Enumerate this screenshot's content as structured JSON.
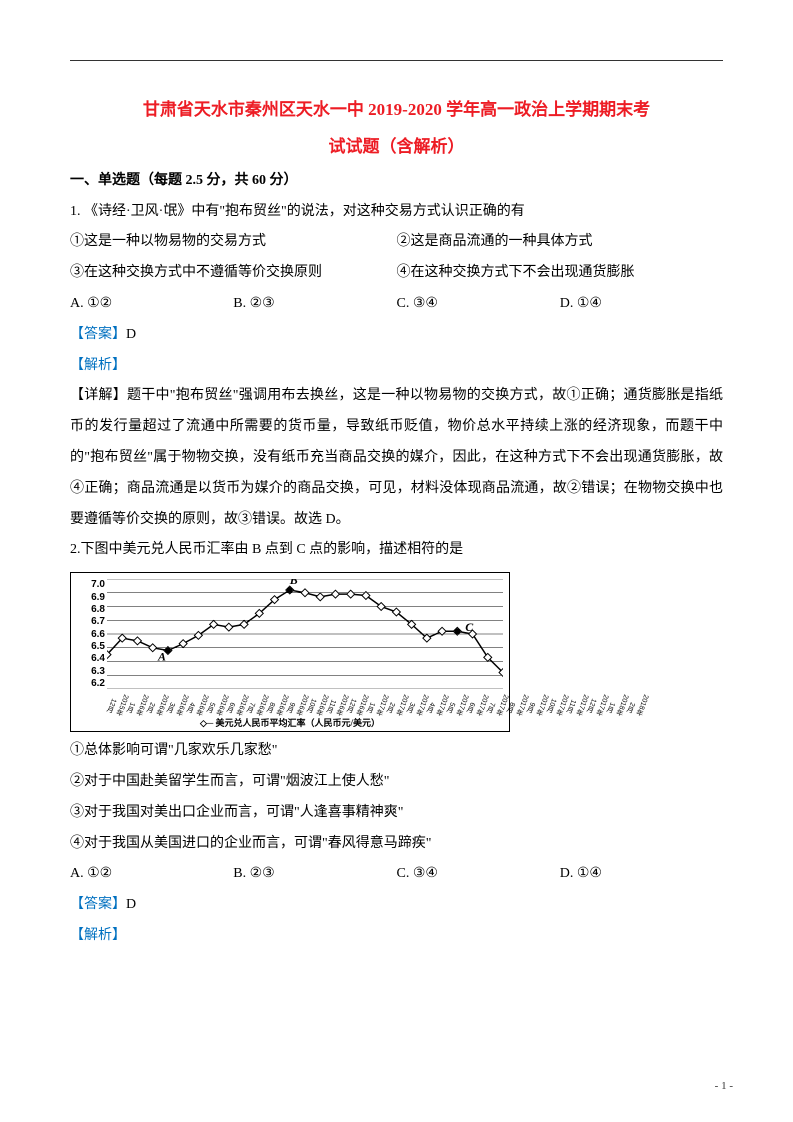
{
  "title_line1": "甘肃省天水市秦州区天水一中 2019-2020 学年高一政治上学期期末考",
  "title_line2": "试试题（含解析）",
  "title_fontsize": 17,
  "title_color": "#ed1c24",
  "section_header": "一、单选题（每题 2.5 分，共 60 分）",
  "body_fontsize": 14,
  "line_height": 2.2,
  "answer_color": "#0070c0",
  "q1": {
    "stem": "1. 《诗经·卫风·氓》中有\"抱布贸丝\"的说法，对这种交易方式认识正确的有",
    "row1_left": "①这是一种以物易物的交易方式",
    "row1_right": "②这是商品流通的一种具体方式",
    "row2_left": "③在这种交换方式中不遵循等价交换原则",
    "row2_right": "④在这种交换方式下不会出现通货膨胀",
    "optA": "A. ①②",
    "optB": "B. ②③",
    "optC": "C. ③④",
    "optD": "D. ①④",
    "answer_label": "【答案】",
    "answer_value": "D",
    "jiexi_label": "【解析】",
    "detail": "【详解】题干中\"抱布贸丝\"强调用布去换丝，这是一种以物易物的交换方式，故①正确；通货膨胀是指纸币的发行量超过了流通中所需要的货币量，导致纸币贬值，物价总水平持续上涨的经济现象，而题干中的\"抱布贸丝\"属于物物交换，没有纸币充当商品交换的媒介，因此，在这种方式下不会出现通货膨胀，故④正确；商品流通是以货币为媒介的商品交换，可见，材料没体现商品流通，故②错误；在物物交换中也要遵循等价交换的原则，故③错误。故选 D。"
  },
  "q2": {
    "stem": "2.下图中美元兑人民币汇率由 B 点到 C 点的影响，描述相符的是",
    "line1": "①总体影响可谓\"几家欢乐几家愁\"",
    "line2": "②对于中国赴美留学生而言，可谓\"烟波江上使人愁\"",
    "line3": "③对于我国对美出口企业而言，可谓\"人逢喜事精神爽\"",
    "line4": "④对于我国从美国进口的企业而言，可谓\"春风得意马蹄疾\"",
    "optA": "A. ①②",
    "optB": "B. ②③",
    "optC": "C. ③④",
    "optD": "D. ①④",
    "answer_label": "【答案】",
    "answer_value": "D",
    "jiexi_label": "【解析】"
  },
  "chart": {
    "type": "line",
    "ylim": [
      6.2,
      7.0
    ],
    "ytick_step": 0.1,
    "yticks": [
      "7.0",
      "6.9",
      "6.8",
      "6.7",
      "6.6",
      "6.5",
      "6.4",
      "6.3",
      "6.2"
    ],
    "xlabels": [
      "2015年12月",
      "2016年1月",
      "2016年2月",
      "2016年3月",
      "2016年4月",
      "2016年5月",
      "2016年6月",
      "2016年7月",
      "2016年8月",
      "2016年9月",
      "2016年10月",
      "2016年11月",
      "2016年12月",
      "2017年1月",
      "2017年2月",
      "2017年3月",
      "2017年4月",
      "2017年5月",
      "2017年6月",
      "2017年7月",
      "2017年8月",
      "2017年9月",
      "2017年10月",
      "2017年11月",
      "2017年12月",
      "2018年1月",
      "2018年2月"
    ],
    "values": [
      6.45,
      6.57,
      6.55,
      6.5,
      6.48,
      6.53,
      6.59,
      6.67,
      6.65,
      6.67,
      6.75,
      6.85,
      6.92,
      6.9,
      6.87,
      6.89,
      6.89,
      6.88,
      6.8,
      6.76,
      6.67,
      6.57,
      6.62,
      6.62,
      6.6,
      6.43,
      6.32
    ],
    "point_A": {
      "label": "A",
      "index": 4
    },
    "point_B": {
      "label": "B",
      "index": 12
    },
    "point_C": {
      "label": "C",
      "index": 23
    },
    "line_color": "#000000",
    "marker_fill": "#ffffff",
    "marker_stroke": "#000000",
    "marker_shape": "diamond",
    "marker_size": 4,
    "line_width": 1.5,
    "background_color": "#ffffff",
    "legend_text": "美元兑人民币平均汇率（人民币元/美元）",
    "label_fontsize": 10
  },
  "page_number": "- 1 -"
}
